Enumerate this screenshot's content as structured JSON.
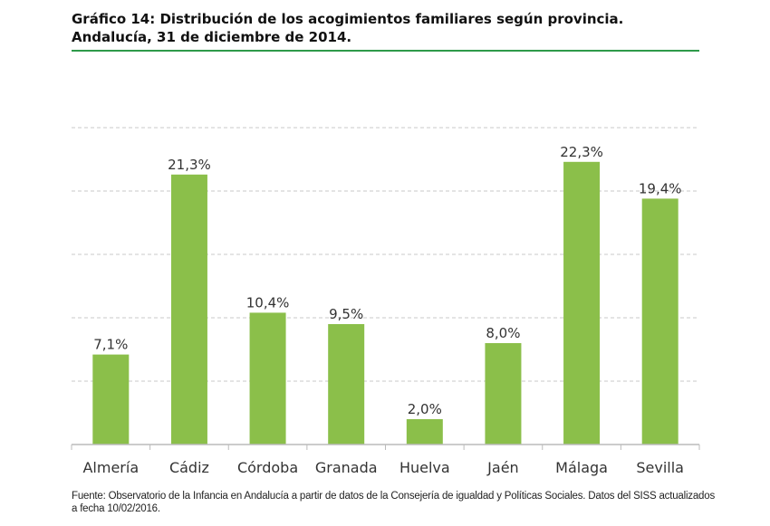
{
  "title": "Gráfico 14: Distribución de los acogimientos familiares según provincia. Andalucía, 31 de diciembre de 2014.",
  "source": "Fuente: Observatorio de la Infancia en Andalucía a partir de datos de la Consejería de igualdad y Políticas Sociales. Datos del SISS actualizados a fecha 10/02/2016.",
  "colors": {
    "bar": "#8bbf4a",
    "accent_rule": "#2e9a4a",
    "grid": "#c8c8c8",
    "axis": "#bbbbbb"
  },
  "chart_data": {
    "type": "bar",
    "categories": [
      "Almería",
      "Cádiz",
      "Córdoba",
      "Granada",
      "Huelva",
      "Jaén",
      "Málaga",
      "Sevilla"
    ],
    "values": [
      7.1,
      21.3,
      10.4,
      9.5,
      2.0,
      8.0,
      22.3,
      19.4
    ],
    "data_labels": [
      "7,1%",
      "21,3%",
      "10,4%",
      "9,5%",
      "2,0%",
      "8,0%",
      "22,3%",
      "19,4%"
    ],
    "title": "",
    "xlabel": "",
    "ylabel": "",
    "ylim": [
      0,
      25
    ],
    "grid": true,
    "legend": "none"
  }
}
